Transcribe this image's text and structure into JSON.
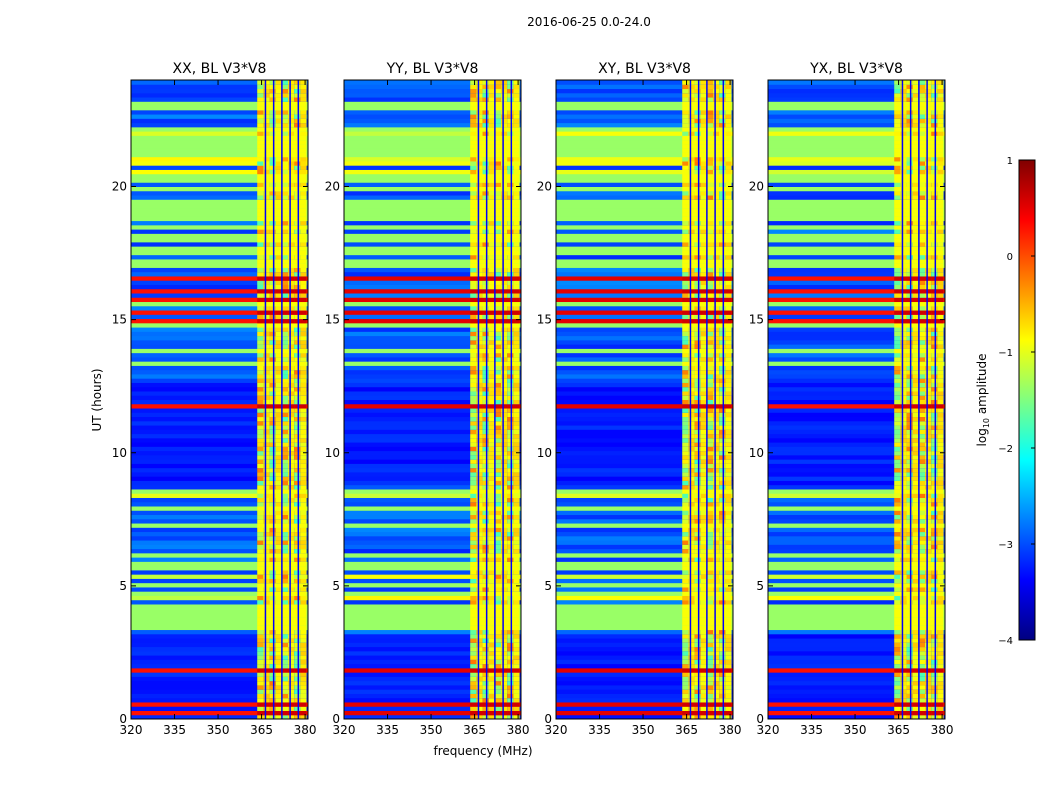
{
  "chart_data": {
    "type": "heatmap",
    "title": "2016-06-25 0.0-24.0",
    "xlabel": "frequency (MHz)",
    "ylabel": "UT (hours)",
    "xlim": [
      320,
      381
    ],
    "ylim": [
      0,
      24
    ],
    "x_ticks": [
      "320",
      "335",
      "350",
      "365",
      "380"
    ],
    "y_ticks": [
      "0",
      "5",
      "10",
      "15",
      "20"
    ],
    "panels": [
      {
        "title": "XX, BL V3*V8",
        "polarization": "XX",
        "baseline": "V3*V8"
      },
      {
        "title": "YY, BL V3*V8",
        "polarization": "YY",
        "baseline": "V3*V8"
      },
      {
        "title": "XY, BL V3*V8",
        "polarization": "XY",
        "baseline": "V3*V8"
      },
      {
        "title": "YX, BL V3*V8",
        "polarization": "YX",
        "baseline": "V3*V8"
      }
    ],
    "colorbar": {
      "label_prefix": "log",
      "label_sub": "10",
      "label_suffix": " amplitude",
      "range": [
        -4,
        1
      ],
      "ticks": [
        "1",
        "0",
        "−1",
        "−2",
        "−3",
        "−4"
      ],
      "colormap": "jet"
    },
    "features": {
      "rfi_band_mhz": [
        363.5,
        380.5
      ],
      "flag_blocks_hours": [
        [
          3.3,
          4.4
        ],
        [
          16.9,
          17.3
        ],
        [
          17.9,
          18.3
        ],
        [
          19.0,
          19.6
        ]
      ],
      "strong_rows_hours": [
        0.3,
        0.5,
        1.9,
        11.8,
        15.0,
        15.3,
        15.8,
        16.1,
        16.5
      ],
      "sparse_dropouts_hours": [
        5.0,
        10.5,
        13.0,
        20.5,
        22.0,
        23.5
      ]
    }
  },
  "colors": {
    "flagged": "#99ff66",
    "background": "#ffffff",
    "axis": "#000000"
  }
}
